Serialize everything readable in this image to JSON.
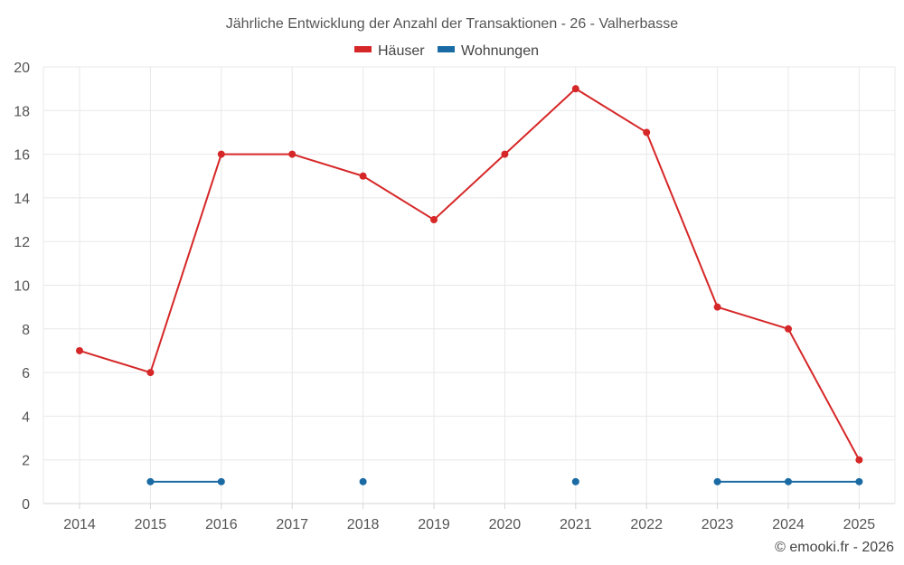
{
  "chart_data": {
    "type": "line",
    "title": "Jährliche Entwicklung der Anzahl der Transaktionen - 26 - Valherbasse",
    "categories": [
      "2014",
      "2015",
      "2016",
      "2017",
      "2018",
      "2019",
      "2020",
      "2021",
      "2022",
      "2023",
      "2024",
      "2025"
    ],
    "ylim": [
      0,
      20
    ],
    "yticks": [
      "0",
      "2",
      "4",
      "6",
      "8",
      "10",
      "12",
      "14",
      "16",
      "18",
      "20"
    ],
    "xlabel": "",
    "ylabel": "",
    "grid": true,
    "legend_position": "top-center",
    "series": [
      {
        "name": "Häuser",
        "color": "#d62728",
        "values": [
          7,
          6,
          16,
          16,
          15,
          13,
          16,
          19,
          17,
          9,
          8,
          2
        ]
      },
      {
        "name": "Wohnungen",
        "color": "#1a6aa3",
        "values": [
          null,
          1,
          1,
          null,
          1,
          null,
          null,
          1,
          null,
          1,
          1,
          1
        ]
      }
    ]
  },
  "credit": "© emooki.fr - 2026"
}
